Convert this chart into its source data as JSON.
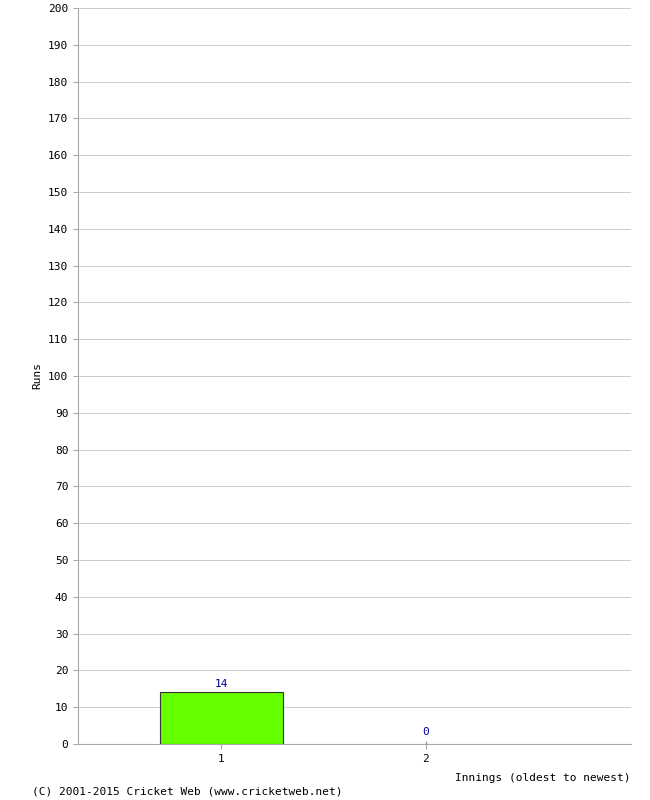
{
  "innings": [
    1,
    2
  ],
  "runs": [
    14,
    0
  ],
  "bar_color": "#66ff00",
  "bar_edge_color": "#333333",
  "label_color": "#000099",
  "ylabel": "Runs",
  "xlabel": "Innings (oldest to newest)",
  "ylim": [
    0,
    200
  ],
  "ytick_step": 10,
  "xtick_labels": [
    "1",
    "2"
  ],
  "footer": "(C) 2001-2015 Cricket Web (www.cricketweb.net)",
  "background_color": "#ffffff",
  "grid_color": "#cccccc",
  "bar_width": 0.6,
  "label_fontsize": 8,
  "axis_fontsize": 8,
  "ylabel_fontsize": 8,
  "xlabel_fontsize": 8,
  "footer_fontsize": 8,
  "xlim": [
    0.3,
    3.0
  ]
}
